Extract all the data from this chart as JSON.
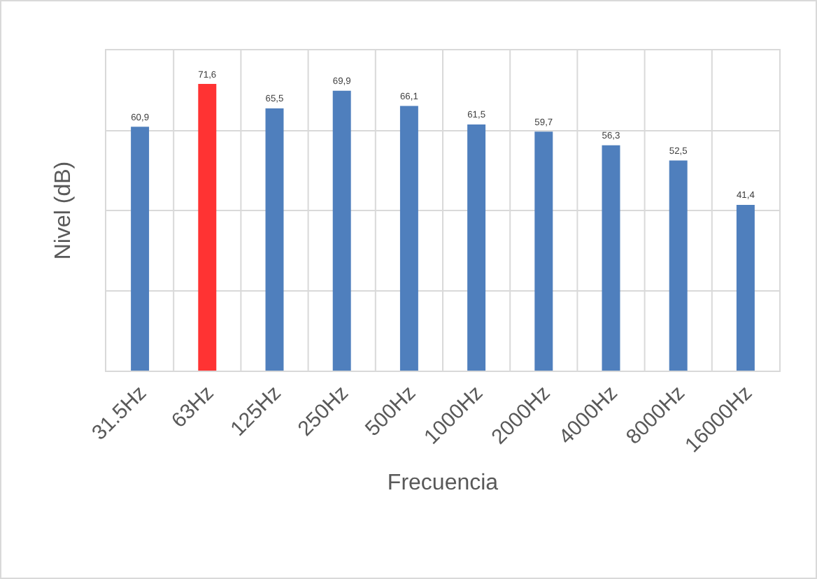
{
  "chart_data": {
    "type": "bar",
    "xlabel": "Frecuencia",
    "ylabel": "Nivel (dB)",
    "categories": [
      "31.5Hz",
      "63Hz",
      "125Hz",
      "250Hz",
      "500Hz",
      "1000Hz",
      "2000Hz",
      "4000Hz",
      "8000Hz",
      "16000Hz"
    ],
    "values": [
      60.9,
      71.6,
      65.5,
      69.9,
      66.1,
      61.5,
      59.7,
      56.3,
      52.5,
      41.4
    ],
    "colors": [
      "#4f7fbd",
      "#ff3333",
      "#4f7fbd",
      "#4f7fbd",
      "#4f7fbd",
      "#4f7fbd",
      "#4f7fbd",
      "#4f7fbd",
      "#4f7fbd",
      "#4f7fbd"
    ],
    "value_labels": [
      "60,9",
      "71,6",
      "65,5",
      "69,9",
      "66,1",
      "61,5",
      "59,7",
      "56,3",
      "52,5",
      "41,4"
    ],
    "ylim": [
      0,
      80
    ],
    "yticks": [
      {
        "value": 0,
        "label": null
      },
      {
        "value": 20,
        "label": null
      },
      {
        "value": 40,
        "label": null
      },
      {
        "value": 60,
        "label": null
      },
      {
        "value": 80,
        "label": null
      }
    ],
    "grid": true,
    "tick_labels": "x"
  }
}
